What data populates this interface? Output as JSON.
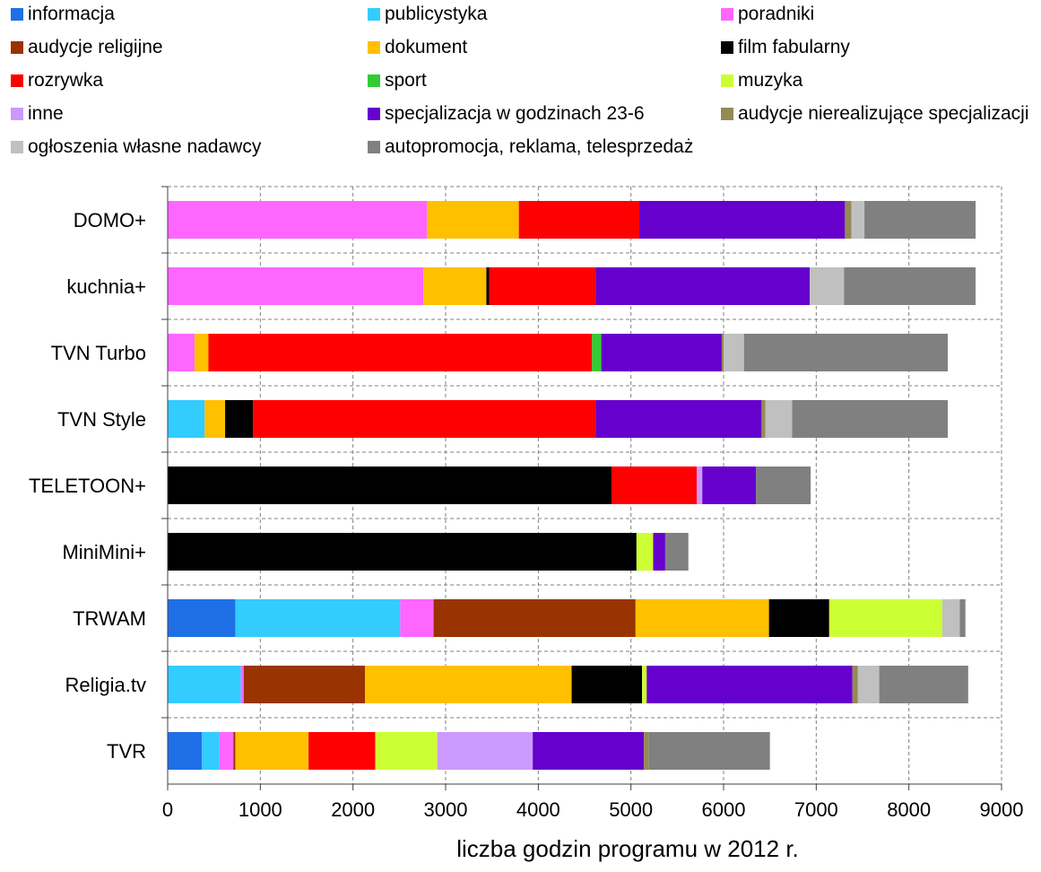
{
  "chart_data": {
    "type": "bar",
    "orientation": "horizontal",
    "stacked": true,
    "xlabel": "liczba godzin programu w 2012 r.",
    "ylabel": "",
    "title": "",
    "xlim": [
      0,
      9000
    ],
    "xticks": [
      0,
      1000,
      2000,
      3000,
      4000,
      5000,
      6000,
      7000,
      8000,
      9000
    ],
    "grid": true,
    "legend_position": "top",
    "categories": [
      "DOMO+",
      "kuchnia+",
      "TVN Turbo",
      "TVN Style",
      "TELETOON+",
      "MiniMini+",
      "TRWAM",
      "Religia.tv",
      "TVR"
    ],
    "series": [
      {
        "name": "informacja",
        "color": "#1f6fe6",
        "values": [
          0,
          0,
          0,
          0,
          0,
          0,
          730,
          0,
          370
        ]
      },
      {
        "name": "publicystyka",
        "color": "#33ccff",
        "values": [
          0,
          0,
          0,
          400,
          0,
          0,
          1780,
          790,
          190
        ]
      },
      {
        "name": "poradniki",
        "color": "#ff66ff",
        "values": [
          2800,
          2760,
          290,
          0,
          0,
          0,
          360,
          30,
          150
        ]
      },
      {
        "name": "audycje religijne",
        "color": "#993300",
        "values": [
          0,
          0,
          0,
          0,
          0,
          0,
          2180,
          1310,
          20
        ]
      },
      {
        "name": "dokument",
        "color": "#ffc000",
        "values": [
          990,
          680,
          150,
          220,
          0,
          0,
          1440,
          2230,
          790
        ]
      },
      {
        "name": "film fabularny",
        "color": "#000000",
        "values": [
          0,
          30,
          0,
          300,
          4790,
          5060,
          650,
          760,
          0
        ]
      },
      {
        "name": "rozrywka",
        "color": "#ff0000",
        "values": [
          1300,
          1150,
          4140,
          3700,
          920,
          0,
          0,
          0,
          720
        ]
      },
      {
        "name": "sport",
        "color": "#33cc33",
        "values": [
          0,
          0,
          100,
          0,
          0,
          0,
          0,
          0,
          0
        ]
      },
      {
        "name": "muzyka",
        "color": "#ccff33",
        "values": [
          0,
          0,
          0,
          0,
          0,
          180,
          1220,
          50,
          670
        ]
      },
      {
        "name": "inne",
        "color": "#cc99ff",
        "values": [
          0,
          0,
          0,
          0,
          60,
          0,
          0,
          0,
          1030
        ]
      },
      {
        "name": "specjalizacja w godzinach 23-6",
        "color": "#6600cc",
        "values": [
          2220,
          2310,
          1300,
          1790,
          580,
          130,
          0,
          2220,
          1200
        ]
      },
      {
        "name": "audycje nierealizujące specjalizacji",
        "color": "#948a54",
        "values": [
          70,
          0,
          20,
          40,
          0,
          0,
          0,
          60,
          50
        ]
      },
      {
        "name": "ogłoszenia własne nadawcy",
        "color": "#c0c0c0",
        "values": [
          140,
          370,
          220,
          290,
          0,
          0,
          190,
          230,
          0
        ]
      },
      {
        "name": "autopromocja, reklama, telesprzedaż",
        "color": "#808080",
        "values": [
          1200,
          1420,
          2200,
          1680,
          590,
          250,
          60,
          960,
          1310
        ]
      }
    ]
  }
}
